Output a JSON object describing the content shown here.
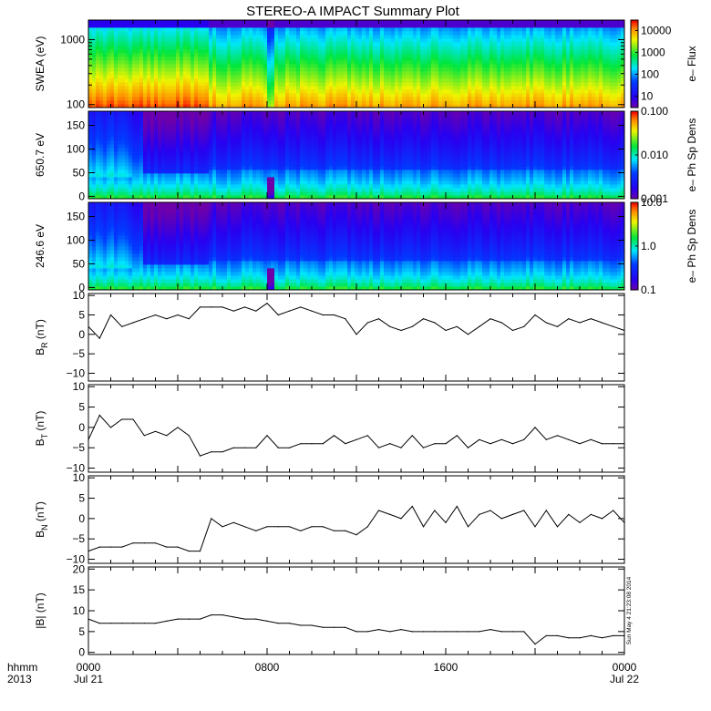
{
  "title": "STEREO-A IMPACT Summary Plot",
  "stamp": "Sun May  4 21:23:08 2014",
  "colors": {
    "axis": "#000000",
    "line": "#000000",
    "background": "#ffffff"
  },
  "time_axis": {
    "corner_labels": [
      "hhmm",
      "2013"
    ],
    "ticks": [
      {
        "hours": 0,
        "label": "0000",
        "sublabel": "Jul 21"
      },
      {
        "hours": 8,
        "label": "0800",
        "sublabel": ""
      },
      {
        "hours": 16,
        "label": "1600",
        "sublabel": ""
      },
      {
        "hours": 24,
        "label": "0000",
        "sublabel": "Jul 22"
      }
    ],
    "range_hours": [
      0,
      24
    ]
  },
  "chart_data": [
    {
      "type": "heatmap",
      "ylabel": "SWEA (eV)",
      "yscale": "log",
      "ylim": [
        90,
        2000
      ],
      "yticks": [
        {
          "v": 100,
          "label": "100"
        },
        {
          "v": 1000,
          "label": "1000"
        }
      ],
      "colorbar": {
        "label": "e– Flux",
        "scale": "log",
        "range": [
          3,
          30000
        ],
        "ticks": [
          {
            "v": 10,
            "label": "10"
          },
          {
            "v": 100,
            "label": "100"
          },
          {
            "v": 1000,
            "label": "1000"
          },
          {
            "v": 10000,
            "label": "10000"
          }
        ]
      }
    },
    {
      "type": "heatmap",
      "ylabel": "650.7 eV",
      "yscale": "linear",
      "ylim": [
        -5,
        180
      ],
      "yticks": [
        {
          "v": 0,
          "label": "0"
        },
        {
          "v": 50,
          "label": "50"
        },
        {
          "v": 100,
          "label": "100"
        },
        {
          "v": 150,
          "label": "150"
        }
      ],
      "colorbar": {
        "label": "e– Ph Sp Dens",
        "scale": "log",
        "range": [
          0.001,
          0.1
        ],
        "ticks": [
          {
            "v": 0.001,
            "label": "0.001"
          },
          {
            "v": 0.01,
            "label": "0.010"
          },
          {
            "v": 0.1,
            "label": "0.100"
          }
        ]
      }
    },
    {
      "type": "heatmap",
      "ylabel": "246.6 eV",
      "yscale": "linear",
      "ylim": [
        -5,
        180
      ],
      "yticks": [
        {
          "v": 0,
          "label": "0"
        },
        {
          "v": 50,
          "label": "50"
        },
        {
          "v": 100,
          "label": "100"
        },
        {
          "v": 150,
          "label": "150"
        }
      ],
      "colorbar": {
        "label": "e– Ph Sp Dens",
        "scale": "log",
        "range": [
          0.1,
          10
        ],
        "ticks": [
          {
            "v": 0.1,
            "label": "0.1"
          },
          {
            "v": 1,
            "label": "1.0"
          },
          {
            "v": 10,
            "label": "10.0"
          }
        ]
      }
    },
    {
      "type": "line",
      "ylabel": "B",
      "ylabel_sub": "R",
      "ylabel_unit": " (nT)",
      "ylim": [
        -12,
        10.5
      ],
      "yticks": [
        {
          "v": -10,
          "label": "−10"
        },
        {
          "v": -5,
          "label": "−5"
        },
        {
          "v": 0,
          "label": "0"
        },
        {
          "v": 5,
          "label": "5"
        },
        {
          "v": 10,
          "label": "10"
        }
      ],
      "x": [
        0,
        0.5,
        1,
        1.5,
        2,
        2.5,
        3,
        3.5,
        4,
        4.5,
        5,
        5.5,
        6,
        6.5,
        7,
        7.5,
        8,
        8.5,
        9,
        9.5,
        10,
        10.5,
        11,
        11.5,
        12,
        12.5,
        13,
        13.5,
        14,
        14.5,
        15,
        15.5,
        16,
        16.5,
        17,
        17.5,
        18,
        18.5,
        19,
        19.5,
        20,
        20.5,
        21,
        21.5,
        22,
        22.5,
        23,
        23.5,
        24
      ],
      "y": [
        2,
        -1,
        5,
        2,
        3,
        4,
        5,
        4,
        5,
        4,
        7,
        7,
        7,
        6,
        7,
        6,
        8,
        5,
        6,
        7,
        6,
        5,
        5,
        4,
        0,
        3,
        4,
        2,
        1,
        2,
        4,
        3,
        1,
        2,
        0,
        2,
        4,
        3,
        1,
        2,
        5,
        3,
        2,
        4,
        3,
        4,
        3,
        2,
        1
      ]
    },
    {
      "type": "line",
      "ylabel": "B",
      "ylabel_sub": "T",
      "ylabel_unit": " (nT)",
      "ylim": [
        -11,
        10.5
      ],
      "yticks": [
        {
          "v": -10,
          "label": "−10"
        },
        {
          "v": -5,
          "label": "−5"
        },
        {
          "v": 0,
          "label": "0"
        },
        {
          "v": 5,
          "label": "5"
        },
        {
          "v": 10,
          "label": "10"
        }
      ],
      "x": [
        0,
        0.5,
        1,
        1.5,
        2,
        2.5,
        3,
        3.5,
        4,
        4.5,
        5,
        5.5,
        6,
        6.5,
        7,
        7.5,
        8,
        8.5,
        9,
        9.5,
        10,
        10.5,
        11,
        11.5,
        12,
        12.5,
        13,
        13.5,
        14,
        14.5,
        15,
        15.5,
        16,
        16.5,
        17,
        17.5,
        18,
        18.5,
        19,
        19.5,
        20,
        20.5,
        21,
        21.5,
        22,
        22.5,
        23,
        23.5,
        24
      ],
      "y": [
        -3,
        3,
        0,
        2,
        2,
        -2,
        -1,
        -2,
        0,
        -2,
        -7,
        -6,
        -6,
        -5,
        -5,
        -5,
        -2,
        -5,
        -5,
        -4,
        -4,
        -4,
        -2,
        -4,
        -3,
        -2,
        -5,
        -4,
        -5,
        -2,
        -5,
        -4,
        -4,
        -2,
        -5,
        -3,
        -4,
        -3,
        -4,
        -3,
        0,
        -3,
        -2,
        -3,
        -4,
        -3,
        -4,
        -4,
        -4
      ]
    },
    {
      "type": "line",
      "ylabel": "B",
      "ylabel_sub": "N",
      "ylabel_unit": " (nT)",
      "ylim": [
        -11,
        10.5
      ],
      "yticks": [
        {
          "v": -10,
          "label": "−10"
        },
        {
          "v": -5,
          "label": "−5"
        },
        {
          "v": 0,
          "label": "0"
        },
        {
          "v": 5,
          "label": "5"
        },
        {
          "v": 10,
          "label": "10"
        }
      ],
      "x": [
        0,
        0.5,
        1,
        1.5,
        2,
        2.5,
        3,
        3.5,
        4,
        4.5,
        5,
        5.5,
        6,
        6.5,
        7,
        7.5,
        8,
        8.5,
        9,
        9.5,
        10,
        10.5,
        11,
        11.5,
        12,
        12.5,
        13,
        13.5,
        14,
        14.5,
        15,
        15.5,
        16,
        16.5,
        17,
        17.5,
        18,
        18.5,
        19,
        19.5,
        20,
        20.5,
        21,
        21.5,
        22,
        22.5,
        23,
        23.5,
        24
      ],
      "y": [
        -8,
        -7,
        -7,
        -7,
        -6,
        -6,
        -6,
        -7,
        -7,
        -8,
        -8,
        0,
        -2,
        -1,
        -2,
        -3,
        -2,
        -2,
        -2,
        -3,
        -2,
        -2,
        -3,
        -3,
        -4,
        -2,
        2,
        1,
        0,
        3,
        -2,
        2,
        -1,
        3,
        -2,
        1,
        2,
        0,
        1,
        2,
        -2,
        2,
        -2,
        1,
        -1,
        1,
        0,
        2,
        -1
      ]
    },
    {
      "type": "line",
      "ylabel": "|B| (nT)",
      "ylim": [
        -0.5,
        20.5
      ],
      "yticks": [
        {
          "v": 0,
          "label": "0"
        },
        {
          "v": 5,
          "label": "5"
        },
        {
          "v": 10,
          "label": "10"
        },
        {
          "v": 15,
          "label": "15"
        },
        {
          "v": 20,
          "label": "20"
        }
      ],
      "x": [
        0,
        0.5,
        1,
        1.5,
        2,
        2.5,
        3,
        3.5,
        4,
        4.5,
        5,
        5.5,
        6,
        6.5,
        7,
        7.5,
        8,
        8.5,
        9,
        9.5,
        10,
        10.5,
        11,
        11.5,
        12,
        12.5,
        13,
        13.5,
        14,
        14.5,
        15,
        15.5,
        16,
        16.5,
        17,
        17.5,
        18,
        18.5,
        19,
        19.5,
        20,
        20.5,
        21,
        21.5,
        22,
        22.5,
        23,
        23.5,
        24
      ],
      "y": [
        8,
        7,
        7,
        7,
        7,
        7,
        7,
        7.5,
        8,
        8,
        8,
        9,
        9,
        8.5,
        8,
        8,
        7.5,
        7,
        7,
        6.5,
        6.5,
        6,
        6,
        6,
        5,
        5,
        5.5,
        5,
        5.5,
        5,
        5,
        5,
        5,
        5,
        5,
        5,
        5.5,
        5,
        5,
        5,
        2,
        4,
        4,
        3.5,
        3.5,
        4,
        3.5,
        4,
        4
      ]
    }
  ]
}
